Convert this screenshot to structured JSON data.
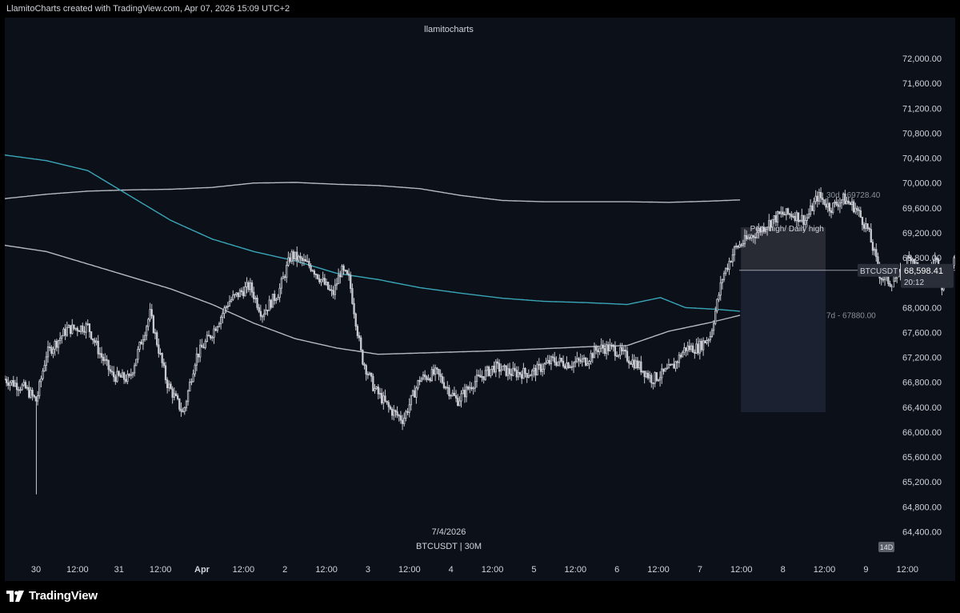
{
  "header": {
    "caption": "LlamitoCharts created with TradingView.com, Apr 07, 2026 15:09 UTC+2"
  },
  "footer": {
    "brand": "TradingView"
  },
  "colors": {
    "background": "#0b1019",
    "candle_up": "#c9cbd1",
    "candle_down": "#c9cbd1",
    "vwap_30d": "#b6b9c0",
    "vwap_7d": "#b6b9c0",
    "moving_line": "#3aa6b9",
    "axis_text": "#d1d4dc",
    "current_price_tag": "#2a2e39",
    "target_zone": "#1c2333",
    "range_zone": "#2a2d36"
  },
  "chart_data": {
    "type": "candlestick",
    "watermark": "llamitocharts",
    "symbol_label": "BTCUSDT | 30M",
    "date_label": "7/4/2026",
    "timeframe_badge": "14D",
    "y_axis": {
      "ticks": [
        "72,000.00",
        "71,600.00",
        "71,200.00",
        "70,800.00",
        "70,400.00",
        "70,000.00",
        "69,600.00",
        "69,200.00",
        "68,800.00",
        "68,400.00",
        "68,000.00",
        "67,600.00",
        "67,200.00",
        "66,800.00",
        "66,400.00",
        "66,000.00",
        "65,600.00",
        "65,200.00",
        "64,800.00",
        "64,400.00"
      ],
      "ylim": [
        64200,
        72400
      ]
    },
    "x_axis": {
      "ticks": [
        "30",
        "12:00",
        "31",
        "12:00",
        "Apr",
        "12:00",
        "2",
        "12:00",
        "3",
        "12:00",
        "4",
        "12:00",
        "5",
        "12:00",
        "6",
        "12:00",
        "7",
        "12:00",
        "8",
        "12:00",
        "9",
        "12:00"
      ],
      "bold_ticks": [
        "Apr"
      ],
      "range_days": [
        0,
        10.7
      ]
    },
    "current_price": {
      "symbol": "BTCUSDT",
      "price": "68,598.41",
      "countdown": "20:12",
      "value": 68598.41
    },
    "annotations": [
      {
        "text": "30d - 69728.40",
        "value": 69728.4
      },
      {
        "text": "7d - 67880.00",
        "value": 67880
      },
      {
        "text": "Poor high/ Daily high",
        "value": 69280
      }
    ],
    "zones": [
      {
        "name": "poor-high-zone",
        "top": 69290,
        "bottom": 68598.41,
        "x_start": 8.87,
        "x_end": 9.89
      },
      {
        "name": "target-zone",
        "top": 68598.41,
        "bottom": 66320,
        "x_start": 8.87,
        "x_end": 9.89
      }
    ],
    "series": [
      {
        "name": "30d",
        "points": [
          [
            0,
            69750
          ],
          [
            0.5,
            69820
          ],
          [
            1,
            69870
          ],
          [
            1.5,
            69890
          ],
          [
            2,
            69900
          ],
          [
            2.5,
            69930
          ],
          [
            3,
            70000
          ],
          [
            3.5,
            70010
          ],
          [
            4,
            69980
          ],
          [
            4.5,
            69960
          ],
          [
            5,
            69910
          ],
          [
            5.5,
            69800
          ],
          [
            6,
            69720
          ],
          [
            6.5,
            69700
          ],
          [
            7,
            69700
          ],
          [
            7.5,
            69700
          ],
          [
            8,
            69690
          ],
          [
            8.5,
            69710
          ],
          [
            8.87,
            69730
          ]
        ]
      },
      {
        "name": "7d",
        "points": [
          [
            0,
            69000
          ],
          [
            0.5,
            68900
          ],
          [
            1,
            68700
          ],
          [
            1.5,
            68500
          ],
          [
            2,
            68300
          ],
          [
            2.5,
            68050
          ],
          [
            3,
            67750
          ],
          [
            3.5,
            67500
          ],
          [
            4,
            67350
          ],
          [
            4.5,
            67250
          ],
          [
            5,
            67270
          ],
          [
            5.5,
            67290
          ],
          [
            6,
            67310
          ],
          [
            6.5,
            67340
          ],
          [
            7,
            67370
          ],
          [
            7.5,
            67390
          ],
          [
            8,
            67620
          ],
          [
            8.5,
            67760
          ],
          [
            8.87,
            67880
          ]
        ]
      },
      {
        "name": "trend",
        "points": [
          [
            0,
            70450
          ],
          [
            0.5,
            70360
          ],
          [
            1,
            70200
          ],
          [
            1.5,
            69800
          ],
          [
            2,
            69400
          ],
          [
            2.5,
            69100
          ],
          [
            3,
            68900
          ],
          [
            3.5,
            68750
          ],
          [
            4,
            68550
          ],
          [
            4.5,
            68450
          ],
          [
            5,
            68320
          ],
          [
            5.5,
            68230
          ],
          [
            6,
            68150
          ],
          [
            6.5,
            68100
          ],
          [
            7,
            68080
          ],
          [
            7.5,
            68050
          ],
          [
            7.9,
            68160
          ],
          [
            8.2,
            68000
          ],
          [
            8.6,
            67970
          ],
          [
            8.87,
            67940
          ]
        ]
      }
    ],
    "closes": [
      [
        0,
        66850
      ],
      [
        0.25,
        66700
      ],
      [
        0.38,
        66500
      ],
      [
        0.5,
        67250
      ],
      [
        0.75,
        67650
      ],
      [
        1,
        67700
      ],
      [
        1.15,
        67250
      ],
      [
        1.3,
        66900
      ],
      [
        1.5,
        66850
      ],
      [
        1.75,
        67900
      ],
      [
        1.95,
        66800
      ],
      [
        2.15,
        66300
      ],
      [
        2.3,
        67200
      ],
      [
        2.5,
        67600
      ],
      [
        2.7,
        68100
      ],
      [
        2.95,
        68350
      ],
      [
        3.1,
        67900
      ],
      [
        3.3,
        68250
      ],
      [
        3.45,
        68850
      ],
      [
        3.7,
        68650
      ],
      [
        3.95,
        68200
      ],
      [
        4.05,
        68600
      ],
      [
        4.15,
        68450
      ],
      [
        4.3,
        67200
      ],
      [
        4.45,
        66700
      ],
      [
        4.65,
        66350
      ],
      [
        4.8,
        66200
      ],
      [
        5,
        66850
      ],
      [
        5.2,
        66950
      ],
      [
        5.45,
        66500
      ],
      [
        5.65,
        66800
      ],
      [
        5.9,
        67050
      ],
      [
        6.1,
        66950
      ],
      [
        6.35,
        66950
      ],
      [
        6.6,
        67150
      ],
      [
        6.8,
        67100
      ],
      [
        7,
        67150
      ],
      [
        7.15,
        67350
      ],
      [
        7.3,
        67350
      ],
      [
        7.45,
        67250
      ],
      [
        7.65,
        67050
      ],
      [
        7.8,
        66850
      ],
      [
        7.95,
        66950
      ],
      [
        8.05,
        67050
      ],
      [
        8.2,
        67350
      ],
      [
        8.35,
        67350
      ],
      [
        8.5,
        67550
      ],
      [
        8.65,
        68500
      ],
      [
        8.8,
        68950
      ],
      [
        9,
        69150
      ],
      [
        9.2,
        69350
      ],
      [
        9.35,
        69500
      ],
      [
        9.5,
        69500
      ],
      [
        9.65,
        69400
      ],
      [
        9.8,
        69800
      ],
      [
        9.95,
        69600
      ],
      [
        10.1,
        69750
      ],
      [
        10.25,
        69600
      ],
      [
        10.4,
        69250
      ],
      [
        10.55,
        68500
      ],
      [
        10.68,
        68400
      ],
      [
        10.82,
        68600
      ],
      [
        10.92,
        68850
      ],
      [
        11.02,
        68550
      ],
      [
        11.12,
        68500
      ],
      [
        11.22,
        68800
      ],
      [
        11.3,
        68300
      ],
      [
        11.45,
        68750
      ],
      [
        11.52,
        69200
      ],
      [
        11.62,
        68200
      ],
      [
        11.72,
        68550
      ],
      [
        11.82,
        68598
      ]
    ]
  }
}
